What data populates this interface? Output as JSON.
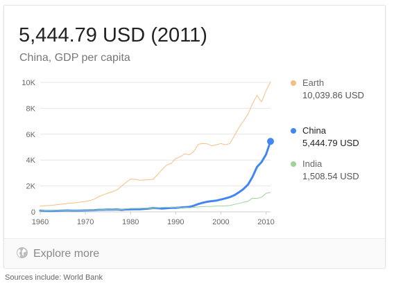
{
  "headline": "5,444.79 USD (2011)",
  "subtitle": "China, GDP per capita",
  "explore_label": "Explore more",
  "sources_text": "Sources include: World Bank",
  "colors": {
    "earth": "#f8bd82",
    "china": "#4285f4",
    "india": "#9ed39a",
    "grid": "#e6e6e6"
  },
  "icons": {
    "explore": "globe-icon"
  },
  "legend": [
    {
      "name": "Earth",
      "value": "10,039.86 USD",
      "series": "earth"
    },
    {
      "name": "China",
      "value": "5,444.79 USD",
      "series": "china"
    },
    {
      "name": "India",
      "value": "1,508.54 USD",
      "series": "india"
    }
  ],
  "chart_data": {
    "type": "line",
    "title": "",
    "xlabel": "",
    "ylabel": "",
    "xlim": [
      1960,
      2011
    ],
    "ylim": [
      0,
      10000
    ],
    "x_ticks": [
      1960,
      1970,
      1980,
      1990,
      2000,
      2010
    ],
    "x_tick_labels": [
      "1960",
      "1970",
      "1980",
      "1990",
      "2000",
      "2010"
    ],
    "y_ticks": [
      0,
      2000,
      4000,
      6000,
      8000,
      10000
    ],
    "y_tick_labels": [
      "0",
      "2K",
      "4K",
      "6K",
      "8K",
      "10K"
    ],
    "grid": "horizontal",
    "legend_position": "right",
    "x": [
      1960,
      1961,
      1962,
      1963,
      1964,
      1965,
      1966,
      1967,
      1968,
      1969,
      1970,
      1971,
      1972,
      1973,
      1974,
      1975,
      1976,
      1977,
      1978,
      1979,
      1980,
      1981,
      1982,
      1983,
      1984,
      1985,
      1986,
      1987,
      1988,
      1989,
      1990,
      1991,
      1992,
      1993,
      1994,
      1995,
      1996,
      1997,
      1998,
      1999,
      2000,
      2001,
      2002,
      2003,
      2004,
      2005,
      2006,
      2007,
      2008,
      2009,
      2010,
      2011
    ],
    "series": [
      {
        "name": "Earth",
        "key": "earth",
        "values": [
          450,
          470,
          490,
          520,
          560,
          600,
          640,
          680,
          710,
          760,
          800,
          870,
          980,
          1180,
          1320,
          1450,
          1550,
          1700,
          1980,
          2280,
          2520,
          2520,
          2440,
          2460,
          2480,
          2520,
          2880,
          3280,
          3620,
          3740,
          4120,
          4250,
          4480,
          4400,
          4650,
          5220,
          5280,
          5250,
          5100,
          5180,
          5280,
          5180,
          5280,
          5880,
          6500,
          7000,
          7550,
          8350,
          9000,
          8500,
          9350,
          10039.86
        ],
        "stroke_width": 1
      },
      {
        "name": "China",
        "key": "china",
        "values": [
          90,
          75,
          70,
          75,
          85,
          100,
          105,
          95,
          90,
          100,
          110,
          115,
          130,
          155,
          160,
          175,
          165,
          185,
          155,
          185,
          195,
          200,
          205,
          225,
          250,
          295,
          280,
          250,
          280,
          310,
          315,
          330,
          365,
          380,
          470,
          605,
          705,
          780,
          830,
          870,
          950,
          1040,
          1140,
          1290,
          1510,
          1760,
          2100,
          2700,
          3470,
          3840,
          4430,
          5444.79
        ],
        "stroke_width": 3,
        "end_marker": true
      },
      {
        "name": "India",
        "key": "india",
        "values": [
          85,
          90,
          92,
          100,
          115,
          118,
          90,
          100,
          100,
          110,
          115,
          120,
          125,
          145,
          165,
          160,
          160,
          185,
          205,
          225,
          270,
          275,
          275,
          295,
          280,
          295,
          315,
          345,
          360,
          350,
          375,
          310,
          325,
          305,
          345,
          380,
          400,
          420,
          420,
          450,
          455,
          460,
          485,
          570,
          650,
          740,
          820,
          1060,
          1030,
          1130,
          1420,
          1508.54
        ],
        "stroke_width": 1
      }
    ]
  }
}
